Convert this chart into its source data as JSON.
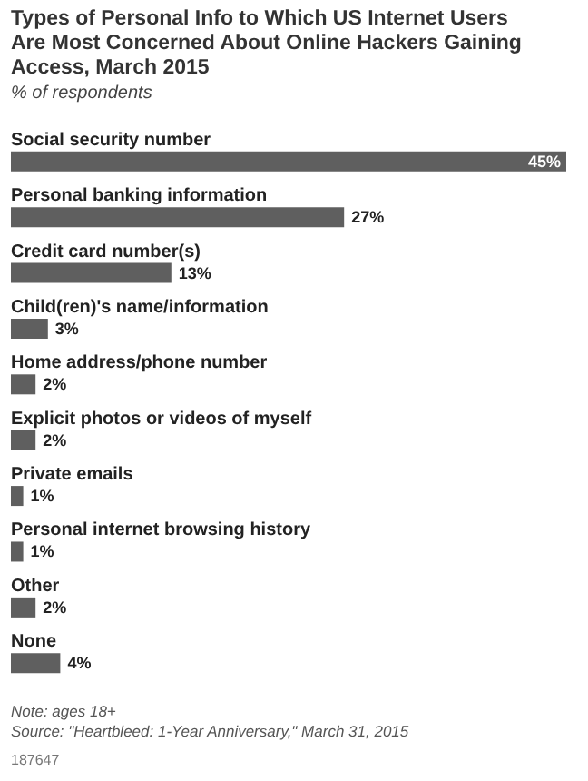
{
  "chart_data": {
    "type": "bar",
    "orientation": "horizontal",
    "title": "Types of Personal Info to Which US Internet Users Are Most Concerned About Online Hackers Gaining Access, March 2015",
    "subtitle": "% of respondents",
    "categories": [
      "Social security number",
      "Personal banking information",
      "Credit card number(s)",
      "Child(ren)'s name/information",
      "Home address/phone number",
      "Explicit photos or videos of myself",
      "Private emails",
      "Personal internet browsing history",
      "Other",
      "None"
    ],
    "values": [
      45,
      27,
      13,
      3,
      2,
      2,
      1,
      1,
      2,
      4
    ],
    "value_labels": [
      "45%",
      "27%",
      "13%",
      "3%",
      "2%",
      "2%",
      "1%",
      "1%",
      "2%",
      "4%"
    ],
    "color": "#5f5f5f",
    "xlim": [
      0,
      45
    ],
    "annotations": [
      "Note: ages 18+",
      "Source: \"Heartbleed: 1-Year Anniversary,\" March 31, 2015",
      "187647"
    ]
  }
}
